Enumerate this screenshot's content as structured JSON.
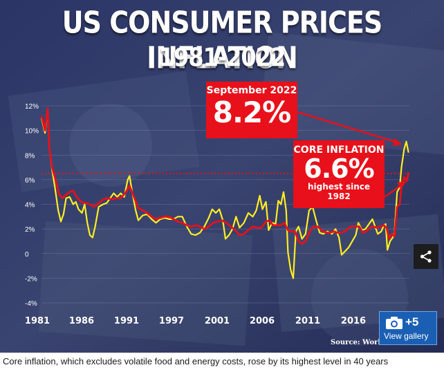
{
  "chart_data": {
    "type": "line",
    "title": "US CONSUMER PRICES INFLATION",
    "subtitle": "1981-2022",
    "x_ticks": [
      "1981",
      "1986",
      "1991",
      "1997",
      "2001",
      "2006",
      "2011",
      "2016"
    ],
    "y_ticks": [
      "12%",
      "10%",
      "8%",
      "6%",
      "4%",
      "2%",
      "0",
      "-2%",
      "-4%"
    ],
    "ylim": [
      -4,
      12
    ],
    "xlim": [
      1981,
      2022.8
    ],
    "reference_line": {
      "value": 6.5,
      "style": "dotted",
      "color": "#e8101a"
    },
    "series": [
      {
        "color": "#ffee22",
        "points": [
          [
            1981.0,
            11.0
          ],
          [
            1981.4,
            9.8
          ],
          [
            1981.7,
            11.5
          ],
          [
            1981.9,
            8.5
          ],
          [
            1982.2,
            6.8
          ],
          [
            1982.5,
            5.5
          ],
          [
            1982.9,
            3.5
          ],
          [
            1983.2,
            2.6
          ],
          [
            1983.5,
            3.2
          ],
          [
            1983.8,
            4.5
          ],
          [
            1984.2,
            4.6
          ],
          [
            1984.6,
            4.0
          ],
          [
            1984.9,
            4.2
          ],
          [
            1985.2,
            3.6
          ],
          [
            1985.6,
            3.3
          ],
          [
            1985.9,
            4.0
          ],
          [
            1986.2,
            2.5
          ],
          [
            1986.5,
            1.5
          ],
          [
            1986.8,
            1.3
          ],
          [
            1987.1,
            2.2
          ],
          [
            1987.5,
            3.8
          ],
          [
            1988.0,
            4.0
          ],
          [
            1988.4,
            4.1
          ],
          [
            1988.8,
            4.5
          ],
          [
            1989.2,
            4.9
          ],
          [
            1989.6,
            4.6
          ],
          [
            1990.0,
            4.9
          ],
          [
            1990.4,
            4.6
          ],
          [
            1990.8,
            6.0
          ],
          [
            1991.0,
            6.3
          ],
          [
            1991.3,
            5.0
          ],
          [
            1991.7,
            3.5
          ],
          [
            1992.0,
            2.7
          ],
          [
            1992.5,
            3.1
          ],
          [
            1993.0,
            3.2
          ],
          [
            1993.5,
            2.8
          ],
          [
            1994.0,
            2.5
          ],
          [
            1994.5,
            2.8
          ],
          [
            1995.0,
            2.9
          ],
          [
            1995.5,
            2.8
          ],
          [
            1996.0,
            2.8
          ],
          [
            1996.5,
            3.0
          ],
          [
            1997.0,
            3.0
          ],
          [
            1997.5,
            2.2
          ],
          [
            1998.0,
            1.6
          ],
          [
            1998.5,
            1.5
          ],
          [
            1999.0,
            1.7
          ],
          [
            1999.5,
            2.2
          ],
          [
            2000.0,
            2.9
          ],
          [
            2000.4,
            3.6
          ],
          [
            2000.8,
            3.3
          ],
          [
            2001.2,
            3.6
          ],
          [
            2001.6,
            2.7
          ],
          [
            2001.9,
            1.2
          ],
          [
            2002.3,
            1.5
          ],
          [
            2002.7,
            2.0
          ],
          [
            2003.1,
            3.0
          ],
          [
            2003.5,
            2.1
          ],
          [
            2004.0,
            2.5
          ],
          [
            2004.5,
            3.3
          ],
          [
            2005.0,
            3.0
          ],
          [
            2005.4,
            3.5
          ],
          [
            2005.8,
            4.7
          ],
          [
            2006.1,
            3.6
          ],
          [
            2006.5,
            4.2
          ],
          [
            2006.8,
            1.9
          ],
          [
            2007.2,
            2.5
          ],
          [
            2007.6,
            2.4
          ],
          [
            2007.9,
            4.3
          ],
          [
            2008.2,
            4.0
          ],
          [
            2008.5,
            5.0
          ],
          [
            2008.8,
            3.5
          ],
          [
            2009.0,
            0.1
          ],
          [
            2009.3,
            -1.3
          ],
          [
            2009.6,
            -2.0
          ],
          [
            2009.9,
            1.8
          ],
          [
            2010.2,
            2.2
          ],
          [
            2010.6,
            1.2
          ],
          [
            2011.0,
            1.6
          ],
          [
            2011.4,
            3.5
          ],
          [
            2011.8,
            3.8
          ],
          [
            2012.2,
            2.7
          ],
          [
            2012.6,
            1.7
          ],
          [
            2013.0,
            1.6
          ],
          [
            2013.5,
            1.8
          ],
          [
            2014.0,
            1.6
          ],
          [
            2014.4,
            2.0
          ],
          [
            2014.8,
            1.3
          ],
          [
            2015.1,
            -0.1
          ],
          [
            2015.5,
            0.2
          ],
          [
            2015.9,
            0.5
          ],
          [
            2016.3,
            1.0
          ],
          [
            2016.7,
            1.5
          ],
          [
            2017.0,
            2.5
          ],
          [
            2017.4,
            1.9
          ],
          [
            2017.8,
            2.0
          ],
          [
            2018.2,
            2.4
          ],
          [
            2018.6,
            2.8
          ],
          [
            2018.9,
            2.2
          ],
          [
            2019.2,
            1.6
          ],
          [
            2019.6,
            1.8
          ],
          [
            2019.9,
            2.3
          ],
          [
            2020.1,
            2.4
          ],
          [
            2020.3,
            0.3
          ],
          [
            2020.6,
            1.0
          ],
          [
            2020.9,
            1.3
          ],
          [
            2021.1,
            1.7
          ],
          [
            2021.4,
            5.0
          ],
          [
            2021.7,
            5.4
          ],
          [
            2021.9,
            7.0
          ],
          [
            2022.2,
            8.5
          ],
          [
            2022.45,
            9.1
          ],
          [
            2022.7,
            8.2
          ]
        ]
      },
      {
        "color": "#e8101a",
        "points": [
          [
            1981.0,
            11.2
          ],
          [
            1981.4,
            10.0
          ],
          [
            1981.7,
            11.8
          ],
          [
            1981.9,
            8.5
          ],
          [
            1982.2,
            7.0
          ],
          [
            1982.6,
            6.0
          ],
          [
            1983.0,
            4.8
          ],
          [
            1983.4,
            4.5
          ],
          [
            1983.8,
            4.8
          ],
          [
            1984.2,
            5.0
          ],
          [
            1984.6,
            5.1
          ],
          [
            1985.0,
            4.6
          ],
          [
            1985.5,
            4.2
          ],
          [
            1986.0,
            4.1
          ],
          [
            1986.5,
            4.0
          ],
          [
            1987.0,
            3.8
          ],
          [
            1987.5,
            4.1
          ],
          [
            1988.0,
            4.4
          ],
          [
            1988.5,
            4.5
          ],
          [
            1989.0,
            4.4
          ],
          [
            1989.5,
            4.5
          ],
          [
            1990.0,
            4.5
          ],
          [
            1990.5,
            4.9
          ],
          [
            1991.0,
            5.5
          ],
          [
            1991.5,
            4.6
          ],
          [
            1992.0,
            3.7
          ],
          [
            1992.5,
            3.5
          ],
          [
            1993.0,
            3.3
          ],
          [
            1993.5,
            3.0
          ],
          [
            1994.0,
            2.8
          ],
          [
            1994.5,
            2.9
          ],
          [
            1995.0,
            3.0
          ],
          [
            1995.5,
            3.0
          ],
          [
            1996.0,
            2.8
          ],
          [
            1996.5,
            2.6
          ],
          [
            1997.0,
            2.5
          ],
          [
            1997.5,
            2.3
          ],
          [
            1998.0,
            2.2
          ],
          [
            1998.5,
            2.3
          ],
          [
            1999.0,
            2.2
          ],
          [
            1999.5,
            2.0
          ],
          [
            2000.0,
            2.2
          ],
          [
            2000.5,
            2.5
          ],
          [
            2001.0,
            2.6
          ],
          [
            2001.5,
            2.7
          ],
          [
            2002.0,
            2.5
          ],
          [
            2002.5,
            2.2
          ],
          [
            2003.0,
            1.9
          ],
          [
            2003.5,
            1.5
          ],
          [
            2004.0,
            1.6
          ],
          [
            2004.5,
            1.9
          ],
          [
            2005.0,
            2.2
          ],
          [
            2005.5,
            2.1
          ],
          [
            2006.0,
            2.1
          ],
          [
            2006.5,
            2.6
          ],
          [
            2006.9,
            2.7
          ],
          [
            2007.3,
            2.3
          ],
          [
            2007.8,
            2.3
          ],
          [
            2008.2,
            2.3
          ],
          [
            2008.6,
            2.5
          ],
          [
            2009.0,
            1.9
          ],
          [
            2009.4,
            1.8
          ],
          [
            2009.8,
            1.8
          ],
          [
            2010.2,
            1.0
          ],
          [
            2010.6,
            0.8
          ],
          [
            2011.0,
            1.0
          ],
          [
            2011.5,
            1.8
          ],
          [
            2011.9,
            2.2
          ],
          [
            2012.4,
            2.2
          ],
          [
            2012.8,
            1.9
          ],
          [
            2013.3,
            1.7
          ],
          [
            2013.8,
            1.7
          ],
          [
            2014.2,
            1.8
          ],
          [
            2014.6,
            1.7
          ],
          [
            2015.0,
            1.7
          ],
          [
            2015.5,
            1.8
          ],
          [
            2015.9,
            2.1
          ],
          [
            2016.3,
            2.2
          ],
          [
            2016.7,
            2.2
          ],
          [
            2017.1,
            2.2
          ],
          [
            2017.5,
            1.7
          ],
          [
            2017.9,
            1.8
          ],
          [
            2018.3,
            2.1
          ],
          [
            2018.7,
            2.2
          ],
          [
            2019.1,
            2.1
          ],
          [
            2019.5,
            2.2
          ],
          [
            2019.9,
            2.3
          ],
          [
            2020.2,
            2.1
          ],
          [
            2020.5,
            1.2
          ],
          [
            2020.8,
            1.6
          ],
          [
            2021.1,
            1.4
          ],
          [
            2021.4,
            3.8
          ],
          [
            2021.7,
            4.0
          ],
          [
            2021.9,
            5.5
          ],
          [
            2022.2,
            6.2
          ],
          [
            2022.5,
            5.9
          ],
          [
            2022.7,
            6.6
          ]
        ]
      }
    ]
  },
  "annotations": {
    "headline": {
      "label": "September 2022",
      "value": "8.2%"
    },
    "core": {
      "label": "CORE INFLATION",
      "value": "6.6%",
      "note_line1": "highest since",
      "note_line2": "1982"
    }
  },
  "colors": {
    "accent_red": "#e8101a",
    "cpi_yellow": "#ffee22"
  },
  "source": "Source: World...",
  "buttons": {
    "share_icon": "share-icon",
    "gallery_count": "+5",
    "gallery_label": "View gallery",
    "gallery_icon": "camera-icon"
  },
  "caption": "Core inflation, which excludes volatile food and energy costs, rose by its highest level in 40 years"
}
